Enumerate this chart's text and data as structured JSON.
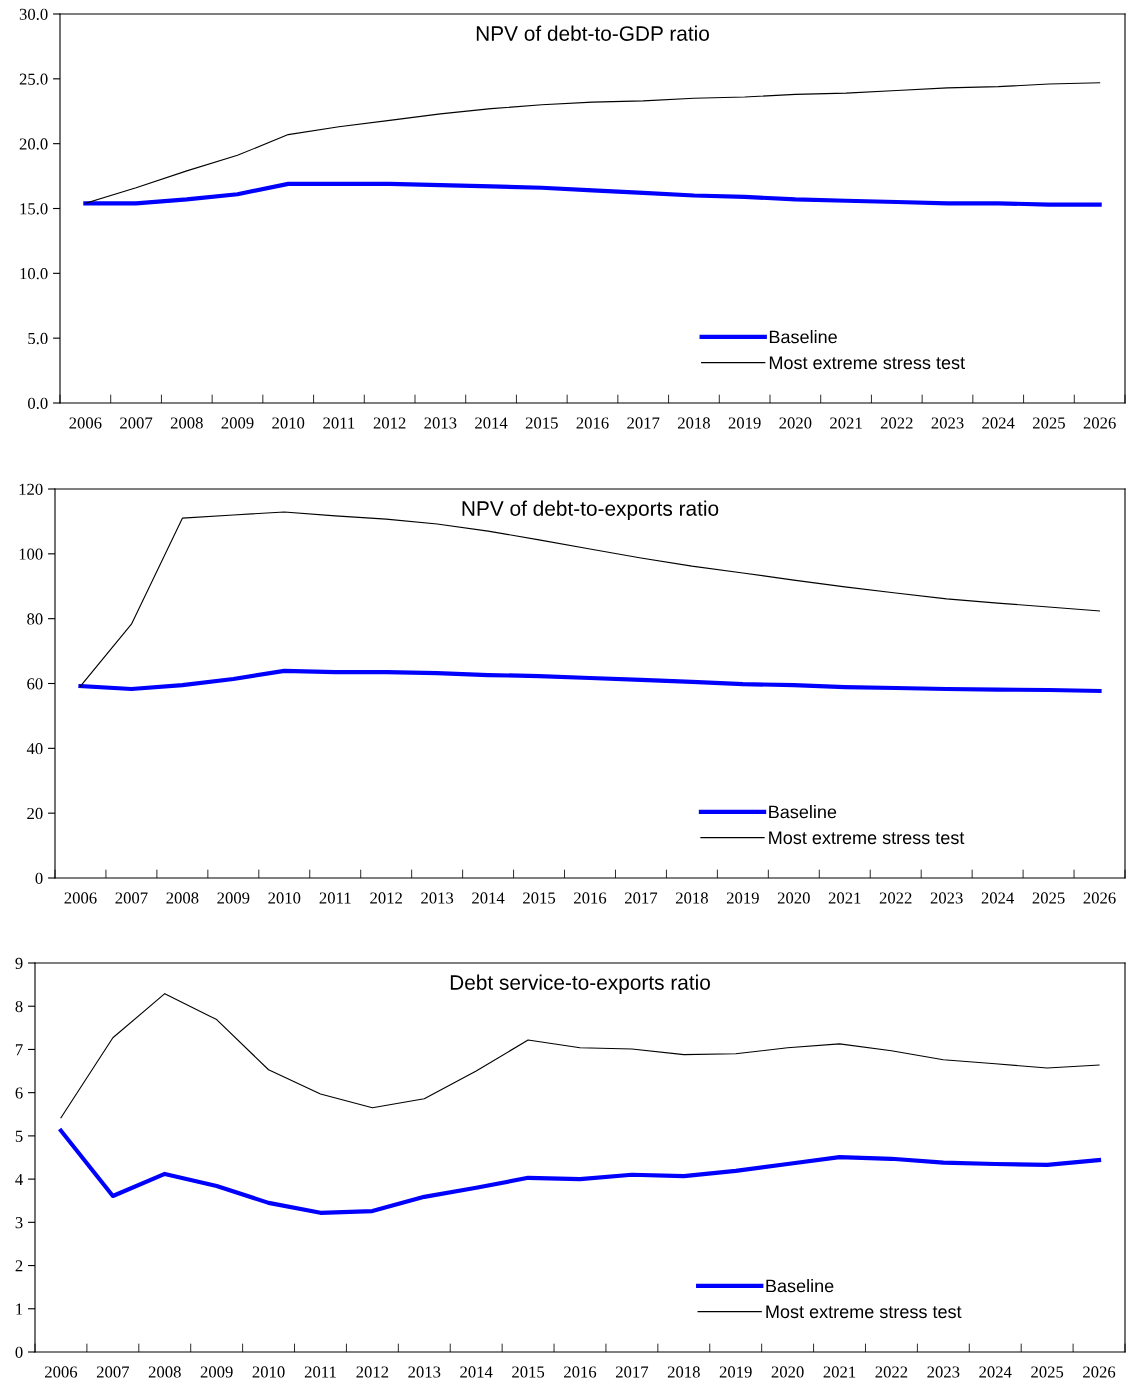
{
  "chart_data": [
    {
      "type": "line",
      "title": "NPV of debt-to-GDP ratio",
      "categories": [
        "2006",
        "2007",
        "2008",
        "2009",
        "2010",
        "2011",
        "2012",
        "2013",
        "2014",
        "2015",
        "2016",
        "2017",
        "2018",
        "2019",
        "2020",
        "2021",
        "2022",
        "2023",
        "2024",
        "2025",
        "2026"
      ],
      "series": [
        {
          "name": "Baseline",
          "color": "#0000ff",
          "values": [
            15.4,
            15.4,
            15.7,
            16.1,
            16.9,
            16.9,
            16.9,
            16.8,
            16.7,
            16.6,
            16.4,
            16.2,
            16.0,
            15.9,
            15.7,
            15.6,
            15.5,
            15.4,
            15.4,
            15.3,
            15.3
          ]
        },
        {
          "name": "Most extreme stress test",
          "color": "#000000",
          "values": [
            15.4,
            16.6,
            17.9,
            19.1,
            20.7,
            21.3,
            21.8,
            22.3,
            22.7,
            23.0,
            23.2,
            23.3,
            23.5,
            23.6,
            23.8,
            23.9,
            24.1,
            24.3,
            24.4,
            24.6,
            24.7
          ]
        }
      ],
      "ylim": [
        0,
        30
      ],
      "yticks": [
        {
          "value": 0,
          "label": "0.0"
        },
        {
          "value": 5,
          "label": "5.0"
        },
        {
          "value": 10,
          "label": "10.0"
        },
        {
          "value": 15,
          "label": "15.0"
        },
        {
          "value": 20,
          "label": "20.0"
        },
        {
          "value": 25,
          "label": "25.0"
        },
        {
          "value": 30,
          "label": "30.0"
        }
      ],
      "grid": false,
      "legend": "bottom right",
      "marker": "none",
      "line_style": "solid"
    },
    {
      "type": "line",
      "title": "NPV of debt-to-exports ratio",
      "categories": [
        "2006",
        "2007",
        "2008",
        "2009",
        "2010",
        "2011",
        "2012",
        "2013",
        "2014",
        "2015",
        "2016",
        "2017",
        "2018",
        "2019",
        "2020",
        "2021",
        "2022",
        "2023",
        "2024",
        "2025",
        "2026"
      ],
      "series": [
        {
          "name": "Baseline",
          "color": "#0000ff",
          "values": [
            59.2,
            58.3,
            59.5,
            61.4,
            63.9,
            63.5,
            63.5,
            63.2,
            62.6,
            62.3,
            61.7,
            61.1,
            60.5,
            59.8,
            59.5,
            58.9,
            58.6,
            58.3,
            58.1,
            58.0,
            57.7
          ]
        },
        {
          "name": "Most extreme stress test",
          "color": "#000000",
          "values": [
            59.2,
            78.3,
            111,
            112,
            112.9,
            111.7,
            110.7,
            109.2,
            107,
            104.3,
            101.5,
            98.7,
            96.2,
            94.1,
            91.9,
            89.8,
            87.9,
            86.1,
            84.8,
            83.6,
            82.4
          ]
        }
      ],
      "ylim": [
        0,
        120
      ],
      "yticks": [
        0,
        20,
        40,
        60,
        80,
        100,
        120
      ],
      "grid": false,
      "legend": "bottom right",
      "marker": "none",
      "line_style": "solid"
    },
    {
      "type": "line",
      "title": "Debt service-to-exports ratio",
      "categories": [
        "2006",
        "2007",
        "2008",
        "2009",
        "2010",
        "2011",
        "2012",
        "2013",
        "2014",
        "2015",
        "2016",
        "2017",
        "2018",
        "2019",
        "2020",
        "2021",
        "2022",
        "2023",
        "2024",
        "2025",
        "2026"
      ],
      "series": [
        {
          "name": "Baseline",
          "color": "#0000ff",
          "values": [
            5.12,
            3.61,
            4.12,
            3.84,
            3.45,
            3.22,
            3.26,
            3.59,
            3.8,
            4.03,
            4.0,
            4.1,
            4.07,
            4.19,
            4.35,
            4.51,
            4.47,
            4.38,
            4.35,
            4.33,
            4.44
          ]
        },
        {
          "name": "Most extreme stress test",
          "color": "#000000",
          "values": [
            5.42,
            7.27,
            8.29,
            7.69,
            6.53,
            5.97,
            5.65,
            5.86,
            6.5,
            7.22,
            7.04,
            7.01,
            6.88,
            6.9,
            7.04,
            7.13,
            6.97,
            6.76,
            6.67,
            6.57,
            6.64
          ]
        }
      ],
      "ylim": [
        0,
        9
      ],
      "yticks": [
        0,
        1,
        2,
        3,
        4,
        5,
        6,
        7,
        8,
        9
      ],
      "grid": false,
      "legend": "bottom right",
      "marker": "none",
      "line_style": "solid"
    }
  ]
}
